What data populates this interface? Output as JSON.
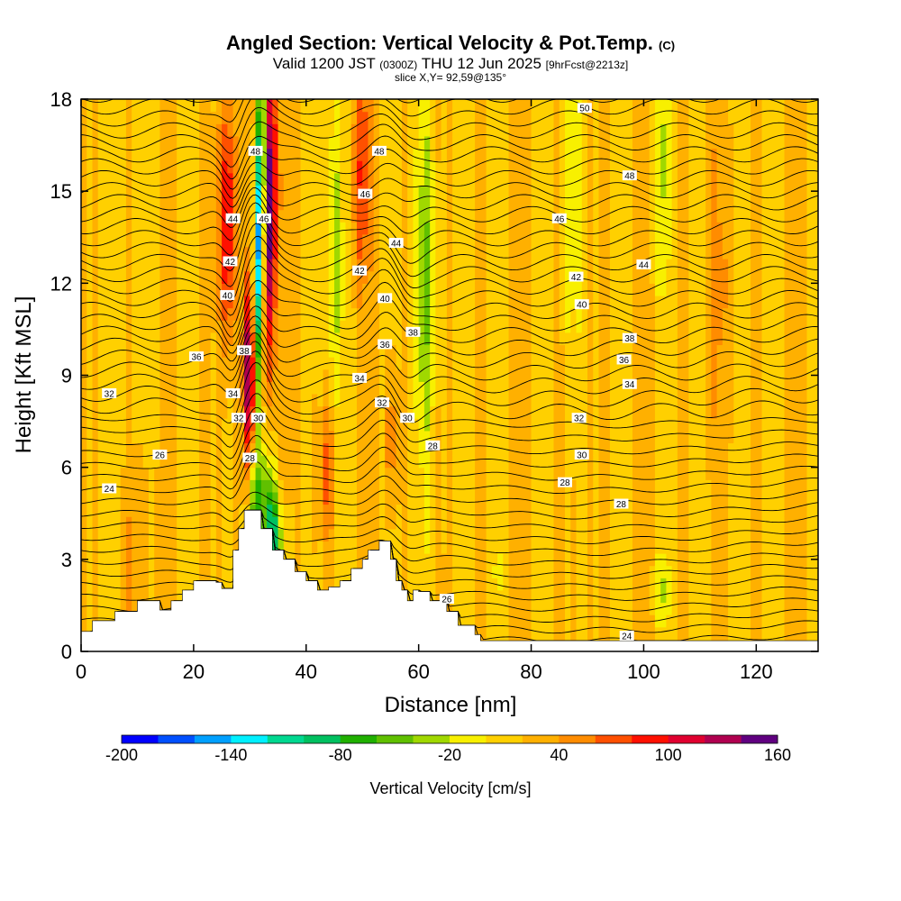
{
  "header": {
    "title": "Angled Section: Vertical Velocity & Pot.Temp.",
    "title_units": "(C)",
    "valid_main": "Valid 1200 JST",
    "valid_z": "(0300Z)",
    "valid_date": "THU 12 Jun 2025",
    "valid_fcst": "[9hrFcst@2213z]",
    "slice": "slice X,Y= 92,59@135°"
  },
  "chart_data": {
    "type": "heatmap",
    "xlabel": "Distance [nm]",
    "ylabel": "Height [Kft MSL]",
    "xlim": [
      0,
      131
    ],
    "ylim": [
      0,
      18
    ],
    "x_ticks": [
      0,
      20,
      40,
      60,
      80,
      100,
      120
    ],
    "y_ticks": [
      0,
      3,
      6,
      9,
      12,
      15,
      18
    ],
    "x_tick_labels": [
      "0",
      "20",
      "40",
      "60",
      "80",
      "100",
      "120"
    ],
    "y_tick_labels": [
      "0",
      "3",
      "6",
      "9",
      "12",
      "15",
      "18"
    ],
    "colorbar": {
      "label": "Vertical Velocity [cm/s]",
      "min": -200,
      "max": 160,
      "step": 20,
      "tick_values": [
        -200,
        -140,
        -80,
        -20,
        40,
        100,
        160
      ],
      "tick_labels": [
        "-200",
        "-140",
        "-80",
        "-20",
        "40",
        "100",
        "160"
      ],
      "colors": [
        "#0000ff",
        "#0050ff",
        "#00a0ff",
        "#00f0ff",
        "#00d890",
        "#00c060",
        "#20b000",
        "#60c000",
        "#a0d800",
        "#f8f000",
        "#ffd000",
        "#ffb000",
        "#ff8c00",
        "#ff5000",
        "#ff1000",
        "#e00030",
        "#b00050",
        "#600080"
      ]
    },
    "terrain_height_kft": [
      [
        0,
        0.65
      ],
      [
        2,
        1.0
      ],
      [
        6,
        1.3
      ],
      [
        10,
        1.65
      ],
      [
        14,
        1.35
      ],
      [
        16,
        1.65
      ],
      [
        18,
        2.0
      ],
      [
        20,
        2.3
      ],
      [
        24,
        2.25
      ],
      [
        25,
        2.05
      ],
      [
        27,
        3.3
      ],
      [
        28,
        4.0
      ],
      [
        29,
        4.6
      ],
      [
        31,
        4.6
      ],
      [
        32,
        4.0
      ],
      [
        34,
        3.3
      ],
      [
        36,
        3.0
      ],
      [
        38,
        2.6
      ],
      [
        40,
        2.3
      ],
      [
        42,
        2.0
      ],
      [
        44,
        2.1
      ],
      [
        46,
        2.3
      ],
      [
        48,
        2.7
      ],
      [
        50,
        3.0
      ],
      [
        51,
        3.3
      ],
      [
        53,
        3.6
      ],
      [
        55,
        3.0
      ],
      [
        56,
        2.3
      ],
      [
        57,
        2.0
      ],
      [
        58,
        1.65
      ],
      [
        59,
        2.0
      ],
      [
        60,
        1.95
      ],
      [
        62,
        1.65
      ],
      [
        65,
        1.3
      ],
      [
        67,
        0.85
      ],
      [
        70,
        0.55
      ],
      [
        71,
        0.35
      ],
      [
        131,
        0.35
      ]
    ],
    "updraft_max_cm_s": 160,
    "downdraft_min_cm_s": -160,
    "pot_temp_contour_labels_c": [
      {
        "x": 5,
        "y": 5.3,
        "v": 24
      },
      {
        "x": 14,
        "y": 6.4,
        "v": 26
      },
      {
        "x": 30,
        "y": 6.3,
        "v": 28
      },
      {
        "x": 28,
        "y": 7.6,
        "v": 32
      },
      {
        "x": 27,
        "y": 8.4,
        "v": 34
      },
      {
        "x": 31.5,
        "y": 7.6,
        "v": 30
      },
      {
        "x": 5,
        "y": 8.4,
        "v": 32
      },
      {
        "x": 20.5,
        "y": 9.6,
        "v": 36
      },
      {
        "x": 29,
        "y": 9.8,
        "v": 38
      },
      {
        "x": 26,
        "y": 11.6,
        "v": 40
      },
      {
        "x": 26.5,
        "y": 12.7,
        "v": 42
      },
      {
        "x": 27,
        "y": 14.1,
        "v": 44
      },
      {
        "x": 31,
        "y": 16.3,
        "v": 48
      },
      {
        "x": 32.5,
        "y": 14.1,
        "v": 46
      },
      {
        "x": 53,
        "y": 16.3,
        "v": 48
      },
      {
        "x": 50.5,
        "y": 14.9,
        "v": 46
      },
      {
        "x": 56,
        "y": 13.3,
        "v": 44
      },
      {
        "x": 49.5,
        "y": 12.4,
        "v": 42
      },
      {
        "x": 54,
        "y": 11.5,
        "v": 40
      },
      {
        "x": 54,
        "y": 10.0,
        "v": 36
      },
      {
        "x": 59,
        "y": 10.4,
        "v": 38
      },
      {
        "x": 49.5,
        "y": 8.9,
        "v": 34
      },
      {
        "x": 53.5,
        "y": 8.1,
        "v": 32
      },
      {
        "x": 58,
        "y": 7.6,
        "v": 30
      },
      {
        "x": 62.5,
        "y": 6.7,
        "v": 28
      },
      {
        "x": 89.5,
        "y": 17.7,
        "v": 50
      },
      {
        "x": 97.5,
        "y": 15.5,
        "v": 48
      },
      {
        "x": 85,
        "y": 14.1,
        "v": 46
      },
      {
        "x": 100,
        "y": 12.6,
        "v": 44
      },
      {
        "x": 88,
        "y": 12.2,
        "v": 42
      },
      {
        "x": 89,
        "y": 11.3,
        "v": 40
      },
      {
        "x": 97.5,
        "y": 10.2,
        "v": 38
      },
      {
        "x": 96.5,
        "y": 9.5,
        "v": 36
      },
      {
        "x": 97.5,
        "y": 8.7,
        "v": 34
      },
      {
        "x": 88.5,
        "y": 7.6,
        "v": 32
      },
      {
        "x": 89,
        "y": 6.4,
        "v": 30
      },
      {
        "x": 86,
        "y": 5.5,
        "v": 28
      },
      {
        "x": 96,
        "y": 4.8,
        "v": 28
      },
      {
        "x": 65,
        "y": 1.7,
        "v": 26
      },
      {
        "x": 97,
        "y": 0.5,
        "v": 24
      }
    ],
    "grid": false,
    "legend": "bottom"
  }
}
